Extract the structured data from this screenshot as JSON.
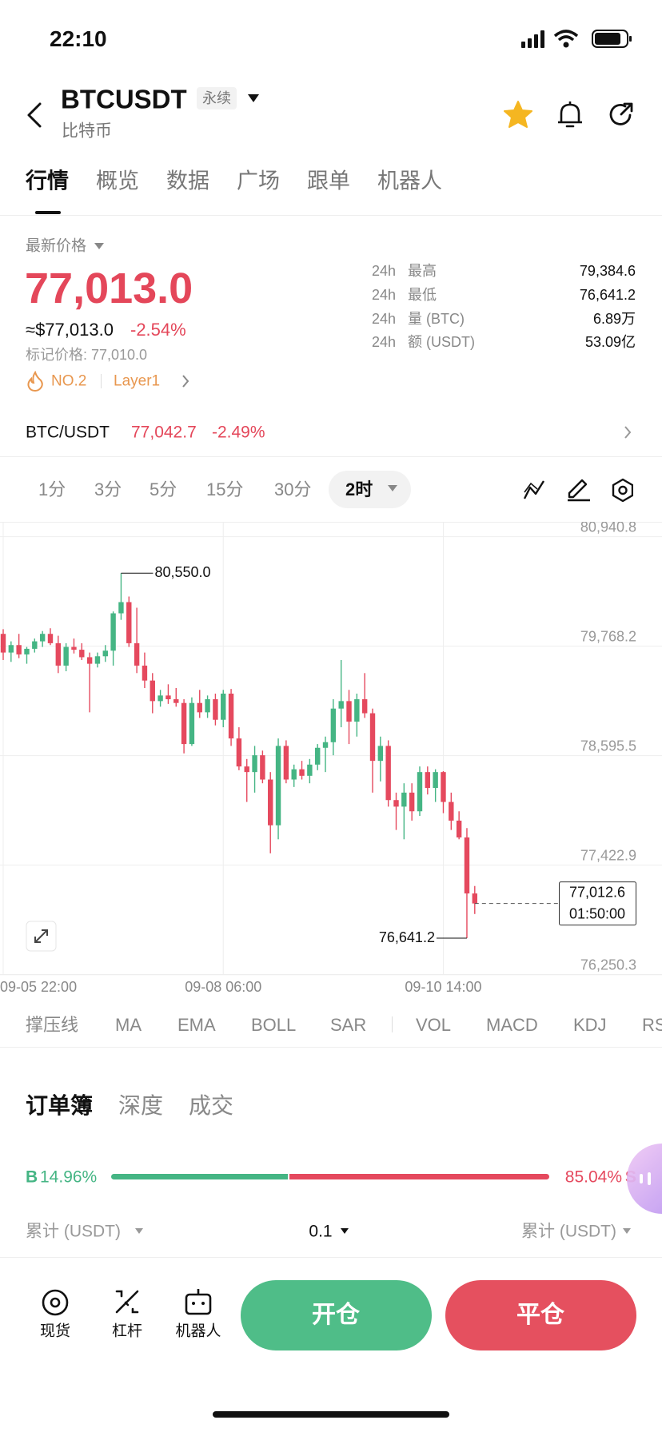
{
  "status_bar": {
    "time": "22:10"
  },
  "header": {
    "symbol": "BTCUSDT",
    "tag": "永续",
    "name": "比特币"
  },
  "tabs": [
    "行情",
    "概览",
    "数据",
    "广场",
    "跟单",
    "机器人"
  ],
  "price": {
    "label": "最新价格",
    "last": "77,013.0",
    "usd": "≈$77,013.0",
    "change": "-2.54%",
    "mark_price": "标记价格: 77,010.0",
    "rank": "NO.2",
    "sector": "Layer1"
  },
  "stats": [
    [
      "24h",
      "最高",
      "79,384.6"
    ],
    [
      "24h",
      "最低",
      "76,641.2"
    ],
    [
      "24h",
      "量 (BTC)",
      "6.89万"
    ],
    [
      "24h",
      "额 (USDT)",
      "53.09亿"
    ]
  ],
  "spot": {
    "pair": "BTC/USDT",
    "price": "77,042.7",
    "change": "-2.49%"
  },
  "intervals": [
    "1分",
    "3分",
    "5分",
    "15分",
    "30分",
    "2时"
  ],
  "chart": {
    "type": "candlestick",
    "ylim": [
      76250.3,
      80940.8
    ],
    "yticks": [
      {
        "value": 80940.8,
        "label": "80,940.8"
      },
      {
        "value": 79768.2,
        "label": "79,768.2"
      },
      {
        "value": 78595.5,
        "label": "78,595.5"
      },
      {
        "value": 77422.9,
        "label": "77,422.9"
      },
      {
        "value": 76250.3,
        "label": "76,250.3"
      }
    ],
    "xticks": [
      {
        "value": 0,
        "label": "09-05 22:00"
      },
      {
        "value": 28,
        "label": "09-08 06:00"
      },
      {
        "value": 56,
        "label": "09-10 14:00"
      }
    ],
    "grid": true,
    "colors": {
      "up": "#45b584",
      "down": "#e5495e"
    },
    "candles": [
      [
        79900,
        79950,
        79620,
        79700
      ],
      [
        79700,
        79820,
        79600,
        79780
      ],
      [
        79780,
        79900,
        79640,
        79680
      ],
      [
        79680,
        79760,
        79580,
        79740
      ],
      [
        79740,
        79850,
        79700,
        79820
      ],
      [
        79820,
        79930,
        79760,
        79900
      ],
      [
        79900,
        79960,
        79780,
        79800
      ],
      [
        79800,
        79880,
        79480,
        79560
      ],
      [
        79560,
        79800,
        79500,
        79760
      ],
      [
        79760,
        79850,
        79690,
        79730
      ],
      [
        79730,
        79800,
        79620,
        79650
      ],
      [
        79650,
        79700,
        79060,
        79580
      ],
      [
        79580,
        79700,
        79540,
        79660
      ],
      [
        79660,
        79780,
        79600,
        79720
      ],
      [
        79720,
        80140,
        79560,
        80120
      ],
      [
        80120,
        80550,
        80050,
        80240
      ],
      [
        80240,
        80300,
        79760,
        79800
      ],
      [
        79800,
        80180,
        79480,
        79560
      ],
      [
        79560,
        79700,
        79320,
        79400
      ],
      [
        79400,
        79480,
        79050,
        79180
      ],
      [
        79180,
        79300,
        79120,
        79240
      ],
      [
        79240,
        79360,
        79150,
        79200
      ],
      [
        79200,
        79320,
        79120,
        79160
      ],
      [
        79160,
        79200,
        78620,
        78720
      ],
      [
        78720,
        79220,
        78700,
        79160
      ],
      [
        79160,
        79300,
        79000,
        79060
      ],
      [
        79060,
        79240,
        79000,
        79200
      ],
      [
        79200,
        79260,
        78920,
        78980
      ],
      [
        78980,
        79300,
        78900,
        79260
      ],
      [
        79260,
        79310,
        78700,
        78780
      ],
      [
        78780,
        78900,
        78440,
        78480
      ],
      [
        78480,
        78560,
        78100,
        78420
      ],
      [
        78420,
        78700,
        78200,
        78600
      ],
      [
        78600,
        78650,
        78300,
        78340
      ],
      [
        78340,
        78420,
        77550,
        77850
      ],
      [
        77850,
        78780,
        77700,
        78700
      ],
      [
        78700,
        78760,
        78300,
        78340
      ],
      [
        78340,
        78500,
        78260,
        78450
      ],
      [
        78450,
        78540,
        78340,
        78380
      ],
      [
        78380,
        78560,
        78300,
        78500
      ],
      [
        78500,
        78720,
        78440,
        78680
      ],
      [
        78680,
        78800,
        78420,
        78740
      ],
      [
        78740,
        79200,
        78600,
        79100
      ],
      [
        79100,
        79620,
        78900,
        79180
      ],
      [
        79180,
        79300,
        78720,
        78960
      ],
      [
        78960,
        79260,
        78800,
        79200
      ],
      [
        79200,
        79480,
        79000,
        79050
      ],
      [
        79050,
        79100,
        78200,
        78540
      ],
      [
        78540,
        78800,
        78320,
        78700
      ],
      [
        78700,
        78760,
        78050,
        78120
      ],
      [
        78120,
        78200,
        77800,
        78050
      ],
      [
        78050,
        78300,
        77700,
        78200
      ],
      [
        78200,
        78300,
        77900,
        78000
      ],
      [
        78000,
        78480,
        77950,
        78420
      ],
      [
        78420,
        78480,
        78180,
        78250
      ],
      [
        78250,
        78450,
        78100,
        78420
      ],
      [
        78420,
        78430,
        77980,
        78100
      ],
      [
        78100,
        78200,
        77800,
        77900
      ],
      [
        77900,
        78000,
        77700,
        77720
      ],
      [
        77720,
        77820,
        76641.2,
        77120
      ],
      [
        77120,
        77200,
        76900,
        77012.6
      ]
    ],
    "high_marker": {
      "value": 80550,
      "label": "80,550.0"
    },
    "low_marker": {
      "value": 76641.2,
      "label": "76,641.2"
    },
    "last_price": {
      "value": 77012.6,
      "label": "77,012.6"
    },
    "countdown": "01:50:00"
  },
  "indicators": [
    "撑压线",
    "MA",
    "EMA",
    "BOLL",
    "SAR",
    "VOL",
    "MACD",
    "KDJ",
    "RSI"
  ],
  "orderbook": {
    "tabs": [
      "订单簿",
      "深度",
      "成交"
    ],
    "buy_side": "B",
    "buy_ratio": "14.96%",
    "sell_ratio": "85.04%",
    "sell_side": "S",
    "columns": [
      "累计 (USDT)",
      "0.1",
      "累计 (USDT)"
    ]
  },
  "bottom_nav": [
    "现货",
    "杠杆",
    "机器人"
  ],
  "actions": [
    "开仓",
    "平仓"
  ]
}
